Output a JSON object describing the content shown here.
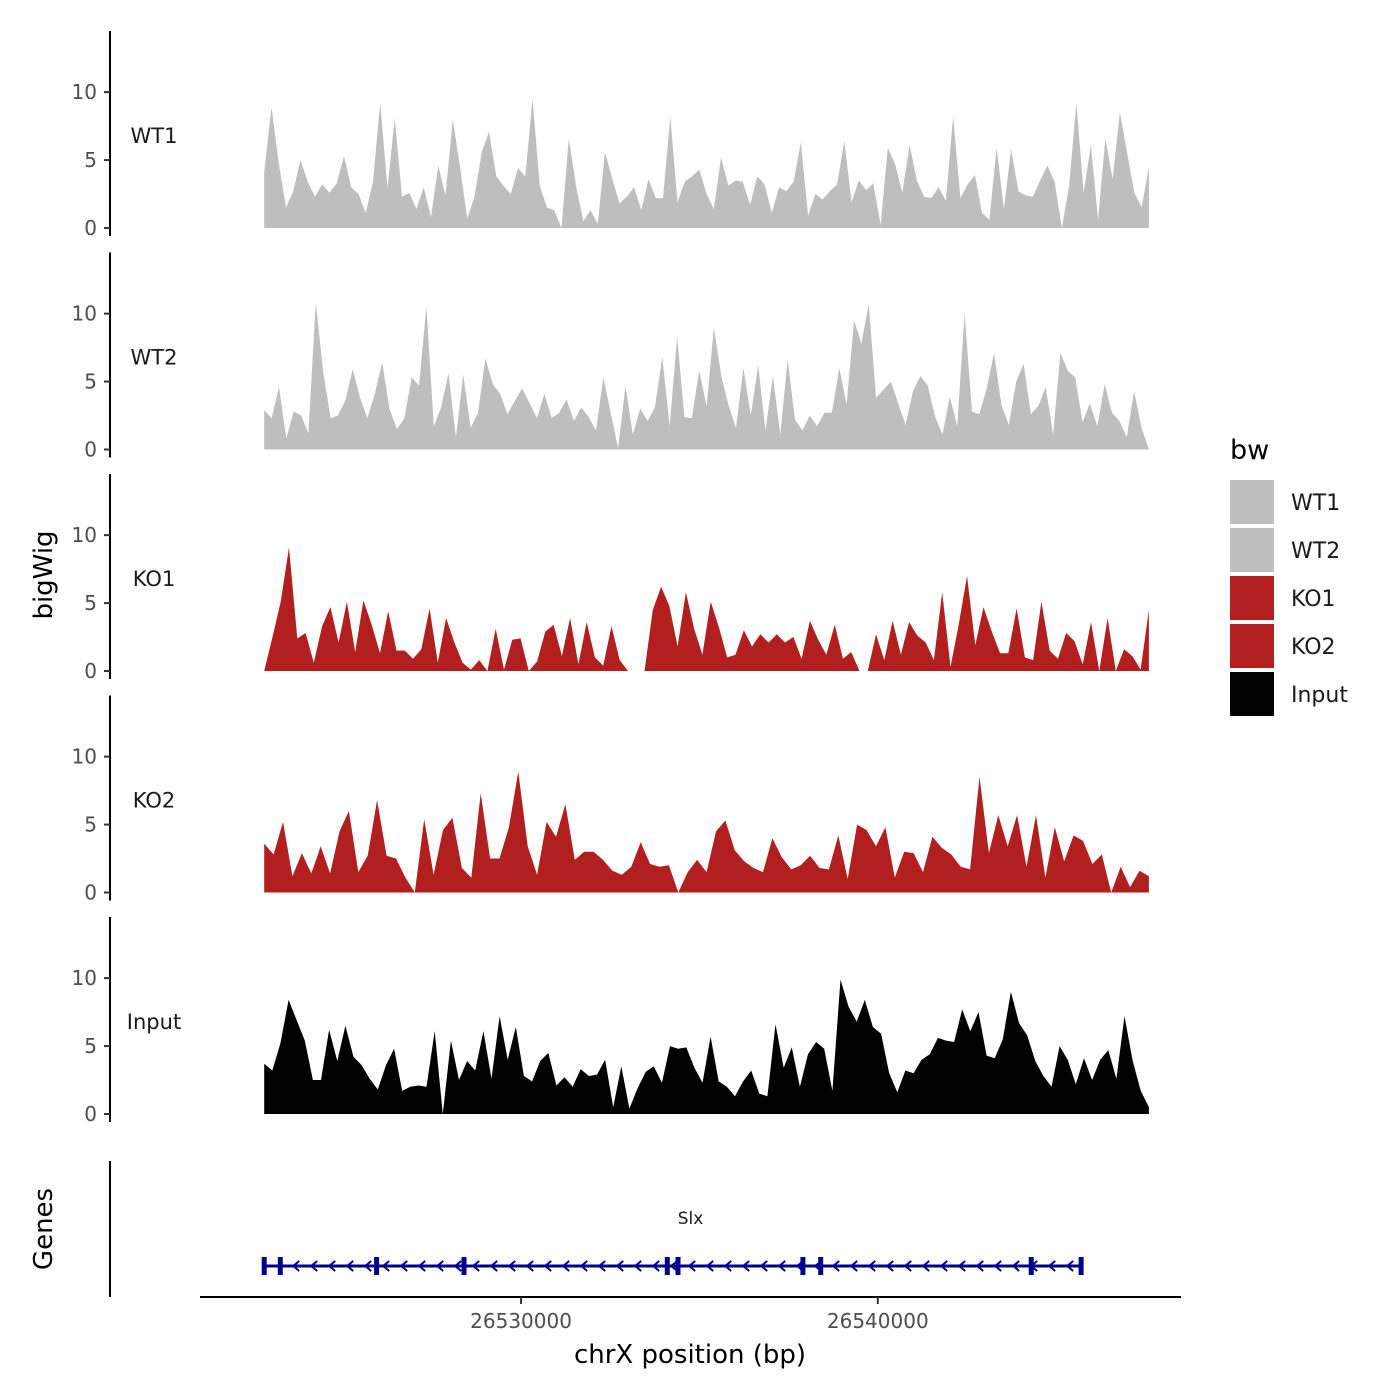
{
  "chart_data": {
    "type": "area",
    "title": "",
    "ylabel": "bigWig",
    "xlabel": "chrX position (bp)",
    "xlim": [
      26521000,
      26548500
    ],
    "data_range": [
      26522800,
      26547600
    ],
    "ylim": [
      0,
      14.5
    ],
    "yticks": [
      0,
      5,
      10
    ],
    "xticks": [
      26530000,
      26540000
    ],
    "xtick_labels": [
      "26530000",
      "26540000"
    ],
    "legend": {
      "title": "bw",
      "position": "right",
      "entries": [
        {
          "name": "WT1",
          "color": "#bebebe"
        },
        {
          "name": "WT2",
          "color": "#bebebe"
        },
        {
          "name": "KO1",
          "color": "#b21f1f"
        },
        {
          "name": "KO2",
          "color": "#b21f1f"
        },
        {
          "name": "Input",
          "color": "#000000"
        }
      ]
    },
    "tracks": [
      {
        "name": "WT1",
        "color": "#bebebe",
        "values": [
          4.1,
          8.9,
          4.8,
          1.5,
          2.7,
          5.0,
          3.4,
          2.3,
          3.2,
          2.6,
          3.3,
          5.3,
          3.0,
          2.5,
          1.1,
          3.4,
          9.2,
          2.9,
          8.1,
          2.3,
          2.6,
          1.4,
          3.0,
          0.8,
          4.6,
          2.4,
          8.0,
          4.5,
          0.7,
          2.3,
          5.6,
          7.1,
          3.8,
          3.1,
          2.5,
          4.4,
          3.8,
          9.5,
          3.1,
          1.5,
          1.3,
          0.0,
          6.6,
          3.1,
          0.5,
          1.3,
          0.3,
          5.6,
          3.6,
          1.8,
          2.3,
          3.0,
          1.3,
          3.6,
          2.2,
          2.2,
          8.2,
          1.9,
          3.4,
          3.8,
          4.3,
          2.5,
          1.4,
          5.2,
          3.1,
          3.5,
          3.4,
          1.7,
          3.8,
          3.2,
          1.1,
          3.0,
          2.7,
          3.4,
          6.3,
          0.9,
          2.5,
          2.1,
          2.7,
          3.2,
          6.4,
          1.9,
          3.5,
          2.8,
          3.3,
          0.2,
          5.9,
          4.7,
          2.6,
          6.1,
          3.5,
          2.3,
          2.2,
          3.0,
          2.0,
          8.2,
          2.2,
          3.2,
          3.9,
          1.1,
          0.6,
          5.9,
          1.4,
          5.8,
          2.7,
          2.4,
          2.3,
          3.5,
          4.6,
          3.4,
          0.0,
          3.1,
          9.2,
          2.6,
          6.1,
          0.6,
          6.6,
          3.6,
          8.5,
          5.5,
          2.6,
          1.5,
          4.5
        ]
      },
      {
        "name": "WT2",
        "color": "#bebebe",
        "values": [
          2.9,
          2.3,
          4.6,
          0.8,
          2.8,
          2.5,
          1.2,
          10.8,
          5.7,
          2.3,
          2.5,
          3.6,
          5.9,
          3.8,
          2.3,
          4.1,
          6.4,
          3.0,
          1.5,
          2.3,
          5.3,
          4.7,
          10.5,
          1.7,
          3.1,
          5.6,
          0.9,
          5.5,
          1.6,
          2.7,
          6.7,
          4.8,
          4.1,
          2.6,
          3.6,
          4.5,
          3.4,
          2.3,
          4.1,
          2.3,
          2.7,
          3.7,
          2.1,
          3.1,
          2.4,
          1.4,
          5.3,
          2.7,
          0.1,
          4.7,
          1.1,
          3.0,
          2.1,
          3.1,
          6.8,
          1.7,
          8.3,
          2.4,
          2.3,
          5.8,
          3.2,
          9.0,
          5.4,
          3.2,
          1.6,
          6.0,
          2.5,
          6.2,
          1.4,
          5.4,
          1.1,
          6.6,
          2.2,
          1.4,
          2.5,
          1.7,
          2.7,
          2.7,
          6.0,
          3.3,
          9.5,
          7.8,
          10.7,
          3.8,
          4.4,
          5.0,
          3.4,
          1.8,
          4.3,
          5.4,
          4.7,
          2.4,
          1.1,
          3.9,
          1.7,
          10.0,
          2.8,
          2.6,
          4.5,
          7.1,
          3.3,
          1.8,
          5.0,
          6.3,
          2.6,
          3.2,
          4.6,
          1.1,
          7.1,
          5.8,
          5.3,
          2.0,
          3.4,
          1.7,
          4.8,
          2.7,
          2.1,
          0.9,
          4.3,
          1.6,
          0.0
        ]
      },
      {
        "name": "KO1",
        "color": "#b21f1f",
        "values": [
          0.0,
          2.5,
          5.1,
          9.1,
          2.4,
          2.8,
          0.6,
          3.3,
          4.7,
          2.1,
          5.1,
          1.4,
          5.2,
          3.4,
          1.3,
          4.4,
          1.5,
          1.5,
          0.9,
          1.6,
          4.6,
          0.6,
          3.9,
          2.1,
          0.6,
          0.1,
          0.8,
          0.0,
          3.1,
          0.1,
          2.3,
          2.4,
          0.0,
          0.7,
          2.9,
          3.4,
          1.1,
          3.9,
          0.5,
          3.6,
          1.0,
          0.4,
          3.3,
          0.8,
          0.0,
          0.0,
          0.0,
          4.5,
          6.2,
          4.8,
          1.8,
          5.8,
          3.1,
          1.2,
          5.1,
          3.2,
          1.0,
          1.2,
          3.0,
          1.8,
          2.7,
          2.1,
          2.7,
          2.1,
          2.5,
          0.9,
          3.7,
          2.3,
          1.2,
          3.4,
          0.9,
          1.4,
          0.0,
          0.0,
          2.7,
          0.8,
          3.7,
          1.2,
          3.6,
          2.6,
          2.1,
          0.8,
          5.8,
          0.3,
          3.4,
          7.0,
          1.9,
          4.7,
          2.9,
          1.3,
          1.3,
          4.6,
          1.0,
          0.8,
          5.1,
          1.5,
          0.9,
          2.8,
          2.2,
          0.5,
          3.6,
          0.0,
          3.9,
          0.0,
          1.6,
          1.1,
          0.1,
          4.5
        ]
      },
      {
        "name": "KO2",
        "color": "#b21f1f",
        "values": [
          3.6,
          2.8,
          5.2,
          1.2,
          2.9,
          1.4,
          3.4,
          1.4,
          4.5,
          6.0,
          1.5,
          2.7,
          6.8,
          2.7,
          2.5,
          1.1,
          0.0,
          5.4,
          1.3,
          4.6,
          5.5,
          1.8,
          1.1,
          7.3,
          2.5,
          2.5,
          4.8,
          8.9,
          3.4,
          1.3,
          5.2,
          4.1,
          6.5,
          2.4,
          3.0,
          3.0,
          2.4,
          1.6,
          1.3,
          1.9,
          3.7,
          2.1,
          1.9,
          2.0,
          0.0,
          1.5,
          2.4,
          1.5,
          4.5,
          5.3,
          3.1,
          2.3,
          1.8,
          1.5,
          4.0,
          2.6,
          1.7,
          2.0,
          2.7,
          1.8,
          1.7,
          4.2,
          1.0,
          5.0,
          4.6,
          3.4,
          4.8,
          1.1,
          3.0,
          2.9,
          1.5,
          4.1,
          3.3,
          2.8,
          1.9,
          1.7,
          8.5,
          2.9,
          5.7,
          3.4,
          5.7,
          1.9,
          5.7,
          1.1,
          4.8,
          2.3,
          4.2,
          3.8,
          2.1,
          2.8,
          0.0,
          1.9,
          0.4,
          1.6,
          1.2
        ]
      },
      {
        "name": "Input",
        "color": "#000000",
        "values": [
          3.7,
          3.2,
          5.2,
          8.4,
          6.9,
          5.4,
          2.5,
          2.5,
          6.2,
          3.9,
          6.5,
          4.2,
          3.6,
          2.6,
          1.8,
          3.6,
          4.8,
          1.7,
          2.0,
          2.1,
          2.0,
          6.1,
          0.0,
          5.4,
          2.5,
          3.9,
          3.2,
          6.1,
          2.6,
          7.2,
          4.0,
          6.4,
          2.8,
          2.4,
          3.9,
          4.5,
          2.1,
          2.7,
          2.0,
          3.3,
          2.8,
          2.9,
          4.0,
          0.5,
          3.5,
          0.4,
          1.9,
          3.1,
          3.5,
          2.3,
          5.0,
          4.8,
          4.9,
          3.4,
          2.3,
          5.7,
          2.4,
          2.0,
          1.3,
          2.4,
          3.2,
          1.5,
          1.3,
          6.6,
          3.4,
          4.9,
          2.0,
          4.4,
          5.3,
          4.8,
          1.7,
          9.9,
          7.9,
          6.8,
          8.4,
          6.4,
          5.9,
          3.0,
          1.6,
          3.2,
          3.0,
          4.0,
          4.4,
          5.6,
          5.4,
          5.3,
          7.7,
          6.1,
          7.5,
          4.3,
          4.1,
          5.5,
          9.0,
          6.7,
          5.8,
          3.9,
          2.8,
          2.0,
          5.0,
          4.0,
          2.2,
          4.1,
          2.5,
          4.0,
          4.7,
          2.6,
          7.2,
          3.9,
          1.7,
          0.5
        ]
      }
    ],
    "gene_track": {
      "title": "Genes",
      "gene_name": "Slx",
      "start": 26522800,
      "end": 26545700,
      "strand": "-",
      "color": "#00008b",
      "exons": [
        26522800,
        26523250,
        26525950,
        26528400,
        26534100,
        26534400,
        26537900,
        26538400,
        26544300,
        26545700
      ]
    }
  }
}
